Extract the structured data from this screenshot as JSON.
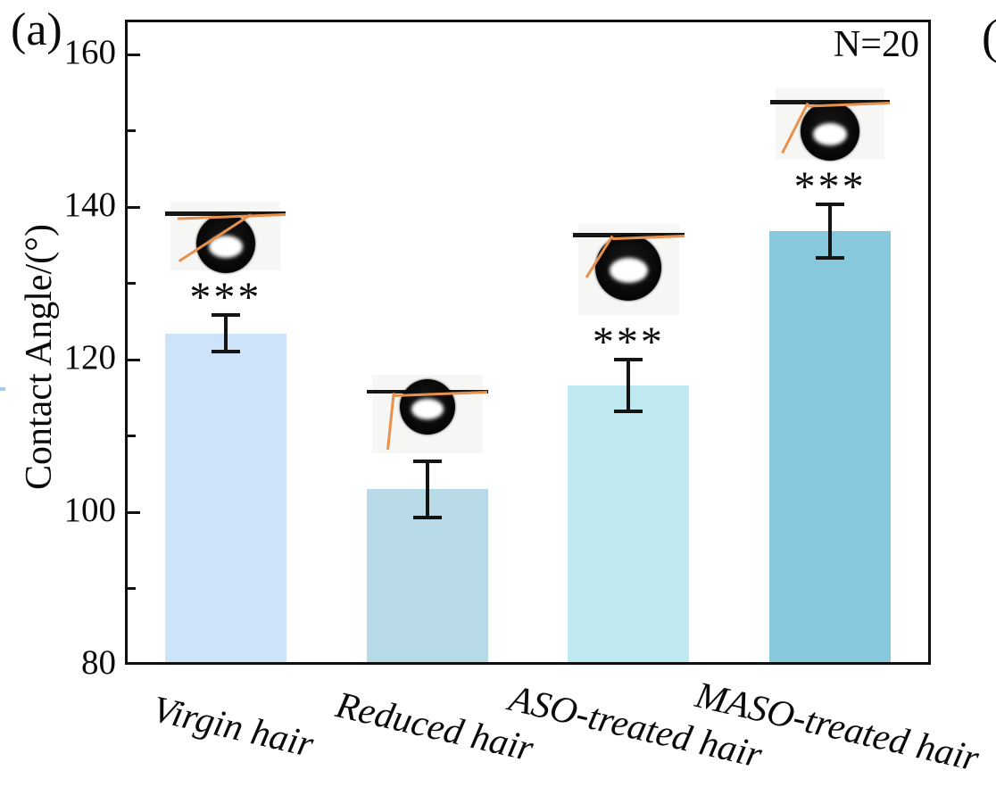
{
  "figure": {
    "panel_label": "(a)",
    "sample_size_label": "N=20",
    "adjacent_panel_fragment": "("
  },
  "chart_data": {
    "type": "bar",
    "title": "",
    "xlabel": "",
    "ylabel": "Contact Angle/(°)",
    "ylim": [
      80,
      160
    ],
    "y_major_ticks": [
      80,
      100,
      120,
      140,
      160
    ],
    "y_minor_tick_step": 10,
    "grid": false,
    "legend": false,
    "sample_size": "N=20",
    "categories": [
      "Virgin hair",
      "Reduced hair",
      "ASO-treated hair",
      "MASO-treated hair"
    ],
    "values": [
      123.4,
      103.0,
      116.6,
      136.8
    ],
    "error_bars": [
      2.4,
      3.7,
      3.4,
      3.5
    ],
    "significance_markers": [
      "***",
      "",
      "***",
      "***"
    ],
    "bar_colors": [
      "#cde3fa",
      "#b8d9e6",
      "#bfe9f1",
      "#87c8dd"
    ],
    "insets": [
      {
        "description": "droplet photo with baseline and orange tangent, contact angle ~123°"
      },
      {
        "description": "droplet photo with baseline and orange tangent, contact angle ~103°"
      },
      {
        "description": "droplet photo with baseline and orange tangent, contact angle ~117°"
      },
      {
        "description": "droplet photo with baseline and orange tangent, contact angle ~137°"
      }
    ]
  }
}
